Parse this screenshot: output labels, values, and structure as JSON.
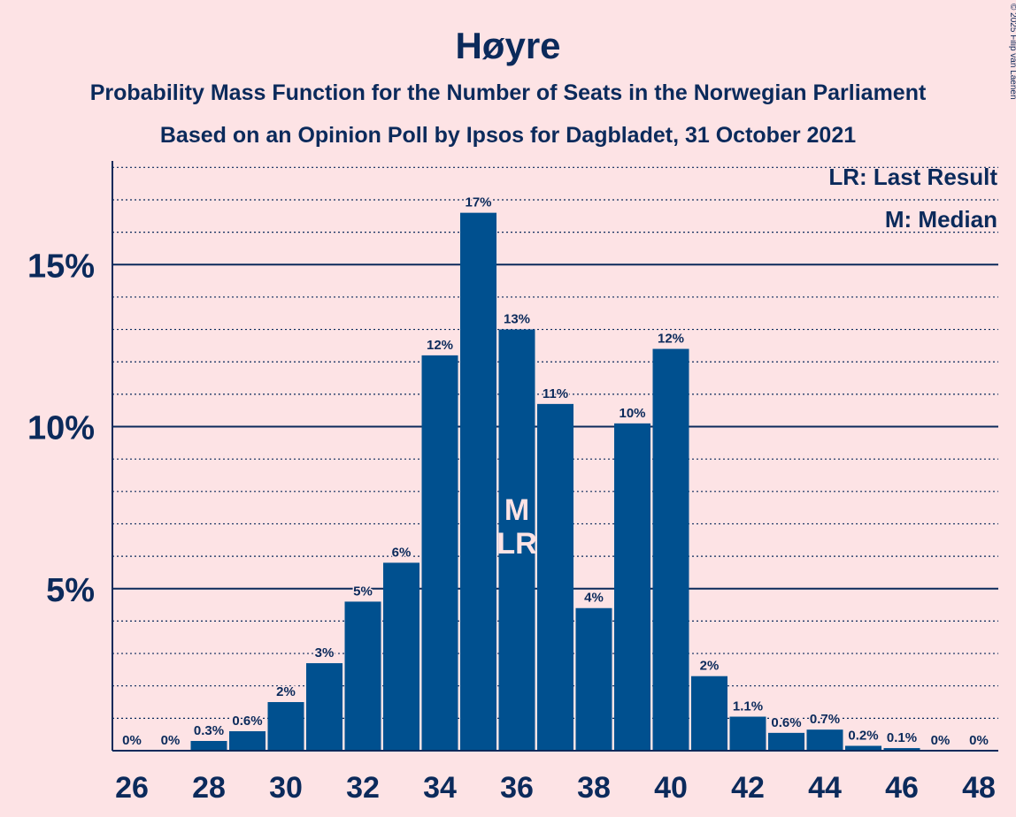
{
  "chart_data": {
    "type": "bar",
    "title": "Høyre",
    "subtitle1": "Probability Mass Function for the Number of Seats in the Norwegian Parliament",
    "subtitle2": "Based on an Opinion Poll by Ipsos for Dagbladet, 31 October 2021",
    "copyright": "© 2025 Filip van Laenen",
    "legend": {
      "lr": "LR: Last Result",
      "m": "M: Median",
      "placement": "top-right"
    },
    "bar_color": "#00508f",
    "ylim": [
      0,
      18.2
    ],
    "yticks": [
      {
        "value": 5,
        "label": "5%"
      },
      {
        "value": 10,
        "label": "10%"
      },
      {
        "value": 15,
        "label": "15%"
      }
    ],
    "x": [
      26,
      27,
      28,
      29,
      30,
      31,
      32,
      33,
      34,
      35,
      36,
      37,
      38,
      39,
      40,
      41,
      42,
      43,
      44,
      45,
      46,
      47,
      48
    ],
    "values": [
      0,
      0,
      0.3,
      0.6,
      1.5,
      2.7,
      4.6,
      5.8,
      12.2,
      16.6,
      13.0,
      10.7,
      4.4,
      10.1,
      12.4,
      2.3,
      1.05,
      0.55,
      0.65,
      0.15,
      0.08,
      0,
      0
    ],
    "labels": [
      "0%",
      "0%",
      "0.3%",
      "0.6%",
      "2%",
      "3%",
      "5%",
      "6%",
      "12%",
      "17%",
      "13%",
      "11%",
      "4%",
      "10%",
      "12%",
      "2%",
      "1.1%",
      "0.6%",
      "0.7%",
      "0.2%",
      "0.1%",
      "0%",
      "0%"
    ],
    "xtick_labels": [
      "26",
      "28",
      "30",
      "32",
      "34",
      "36",
      "38",
      "40",
      "42",
      "44",
      "46",
      "48"
    ],
    "median_seat": 36,
    "last_result_seat": 36,
    "median_mark": "M",
    "last_result_mark": "LR"
  }
}
